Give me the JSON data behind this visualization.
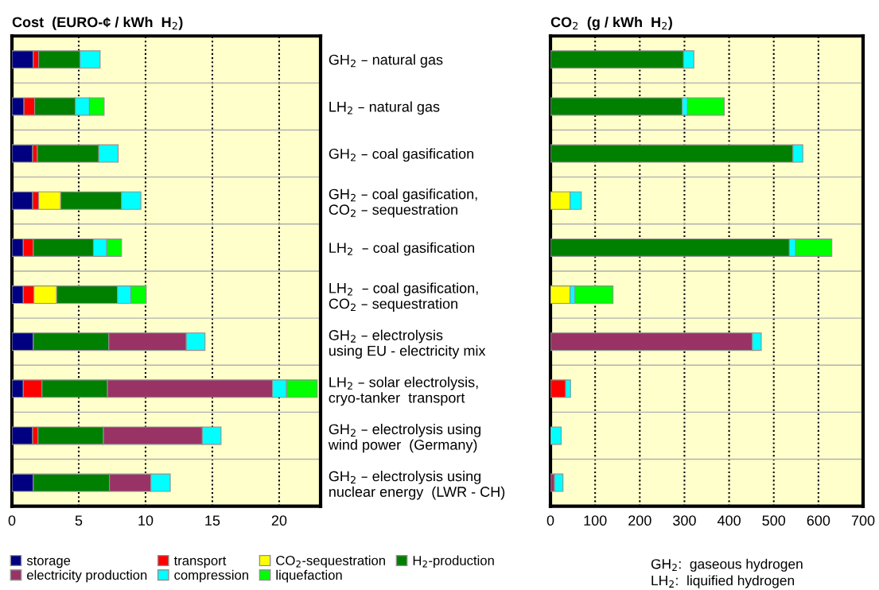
{
  "chart_data": [
    {
      "type": "bar",
      "orientation": "horizontal",
      "stacked": true,
      "title": "Cost  (EURO-¢ / kWh  H$_{2}$)",
      "categories": [
        null,
        null,
        null,
        null,
        null,
        null,
        null,
        null,
        null,
        null
      ],
      "series": [
        {
          "name": "storage",
          "color": "#000080",
          "values": [
            1.6,
            0.9,
            1.55,
            1.55,
            0.85,
            0.85,
            1.6,
            0.85,
            1.55,
            1.6
          ]
        },
        {
          "name": "transport",
          "color": "#ff0000",
          "values": [
            0.4,
            0.8,
            0.35,
            0.45,
            0.75,
            0.8,
            null,
            1.4,
            0.4,
            null
          ]
        },
        {
          "name": "CO$_{2}$-sequestration",
          "color": "#ffff00",
          "values": [
            null,
            null,
            null,
            1.65,
            null,
            1.7,
            null,
            null,
            null,
            null
          ]
        },
        {
          "name": "H$_{2}$-production",
          "color": "#008000",
          "values": [
            3.1,
            3.05,
            4.6,
            4.55,
            4.5,
            4.55,
            5.65,
            4.9,
            4.9,
            5.7
          ]
        },
        {
          "name": "electricity production",
          "color": "#993366",
          "values": [
            null,
            null,
            null,
            null,
            null,
            null,
            5.8,
            12.35,
            7.4,
            3.1
          ]
        },
        {
          "name": "compression",
          "color": "#00ffff",
          "values": [
            1.5,
            1.05,
            1.45,
            1.45,
            1.0,
            1.0,
            1.4,
            1.05,
            1.4,
            1.45
          ]
        },
        {
          "name": "liquefaction",
          "color": "#00ff00",
          "values": [
            null,
            1.1,
            null,
            null,
            1.1,
            1.15,
            null,
            2.3,
            null,
            null
          ]
        }
      ],
      "xlim": [
        0,
        23.1
      ],
      "xticks": [
        0,
        5,
        10,
        15,
        20
      ],
      "grid": "x",
      "tick_labels": "x",
      "legend": "bottom"
    },
    {
      "type": "bar",
      "orientation": "horizontal",
      "stacked": true,
      "title": "CO$_{2}$  (g / kWh  H$_{2}$)",
      "categories": [
        "GH$_{2}$ – natural gas",
        "LH$_{2}$ – natural gas",
        "GH$_{2}$ – coal gasification",
        "GH$_{2}$ – coal gasification,\nCO$_{2}$ – sequestration",
        "LH$_{2}$  – coal gasification",
        "LH$_{2}$  – coal gasification,\nCO$_{2}$ – sequestration",
        "GH$_{2}$ – electrolysis\nusing EU - electricity mix",
        "LH$_{2}$ – solar electrolysis,\ncryo-tanker  transport",
        "GH$_{2}$ – electrolysis using\nwind power  (Germany)",
        "GH$_{2}$ – electrolysis using\nnuclear energy  (LWR - CH)"
      ],
      "series": [
        {
          "color": "#ff0000",
          "values": [
            null,
            null,
            null,
            null,
            null,
            null,
            null,
            34,
            null,
            null
          ]
        },
        {
          "color": "#ffff00",
          "values": [
            null,
            null,
            null,
            44,
            null,
            44,
            null,
            null,
            null,
            null
          ]
        },
        {
          "color": "#008000",
          "values": [
            298,
            295,
            543,
            null,
            535,
            null,
            null,
            null,
            null,
            null
          ]
        },
        {
          "color": "#993366",
          "values": [
            null,
            null,
            null,
            null,
            null,
            null,
            452,
            null,
            null,
            9
          ]
        },
        {
          "color": "#00ffff",
          "values": [
            23,
            12,
            22,
            25,
            14,
            11,
            20,
            11,
            24,
            19
          ]
        },
        {
          "color": "#00ff00",
          "values": [
            null,
            82,
            null,
            null,
            81,
            85,
            null,
            null,
            null,
            null
          ]
        }
      ],
      "xlim": [
        0,
        700
      ],
      "xticks": [
        0,
        100,
        200,
        300,
        400,
        500,
        600,
        700
      ],
      "grid": "x",
      "annotations": [
        "GH$_{2}$:  gaseous hydrogen",
        "LH$_{2}$:  liquified hydrogen"
      ]
    }
  ]
}
